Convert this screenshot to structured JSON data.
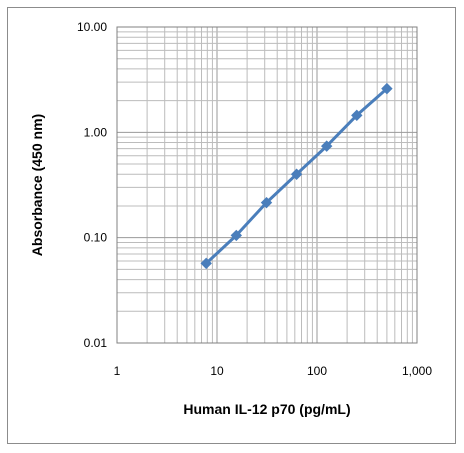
{
  "chart_data": {
    "type": "line",
    "title": "",
    "xlabel": "Human IL-12 p70 (pg/mL)",
    "ylabel": "Absorbance (450 nm)",
    "x_scale": "log",
    "y_scale": "log",
    "xlim": [
      1,
      1000
    ],
    "ylim": [
      0.01,
      10
    ],
    "x_ticks": [
      1,
      10,
      100,
      1000
    ],
    "x_tick_labels": [
      "1",
      "10",
      "100",
      "1,000"
    ],
    "y_ticks": [
      0.01,
      0.1,
      1,
      10
    ],
    "y_tick_labels": [
      "0.01",
      "0.10",
      "1.00",
      "10.00"
    ],
    "grid": true,
    "legend": "none",
    "series": [
      {
        "color": "#4a7ebb",
        "marker": "diamond",
        "x": [
          7.8,
          15.6,
          31.25,
          62.5,
          125,
          250,
          500
        ],
        "y": [
          0.057,
          0.105,
          0.215,
          0.4,
          0.74,
          1.45,
          2.6
        ]
      }
    ]
  }
}
